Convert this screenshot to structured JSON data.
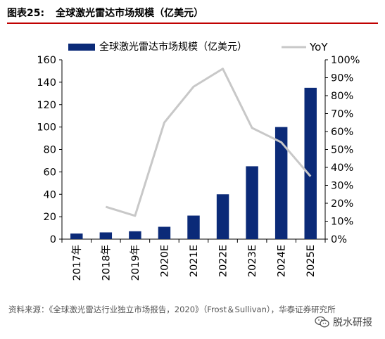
{
  "figure": {
    "label": "图表25:",
    "title": "全球激光雷达市场规模（亿美元）"
  },
  "chart_data": {
    "type": "bar",
    "categories": [
      "2017年",
      "2018年",
      "2019年",
      "2020E",
      "2021E",
      "2022E",
      "2023E",
      "2024E",
      "2025E"
    ],
    "series": [
      {
        "name": "全球激光雷达市场规模（亿美元）",
        "type": "bar",
        "axis": "left",
        "color": "#0b2a78",
        "values": [
          5,
          6,
          7,
          11,
          21,
          40,
          65,
          100,
          135
        ]
      },
      {
        "name": "YoY",
        "type": "line",
        "axis": "right",
        "color": "#c8c8c8",
        "values": [
          null,
          0.18,
          0.13,
          0.65,
          0.85,
          0.95,
          0.62,
          0.54,
          0.35
        ]
      }
    ],
    "y_left": {
      "range": [
        0,
        160
      ],
      "ticks": [
        "0",
        "20",
        "40",
        "60",
        "80",
        "100",
        "120",
        "140",
        "160"
      ]
    },
    "y_right": {
      "range": [
        0,
        1
      ],
      "ticks": [
        "0%",
        "10%",
        "20%",
        "30%",
        "40%",
        "50%",
        "60%",
        "70%",
        "80%",
        "90%",
        "100%"
      ]
    },
    "grid": false,
    "legend_position": "top"
  },
  "source": {
    "text": "资料来源：《全球激光雷达行业独立市场报告，2020》（Frost＆Sullivan），华泰证券研究所"
  },
  "watermark": {
    "text": "脱水研报",
    "icon": "wechat-icon"
  }
}
